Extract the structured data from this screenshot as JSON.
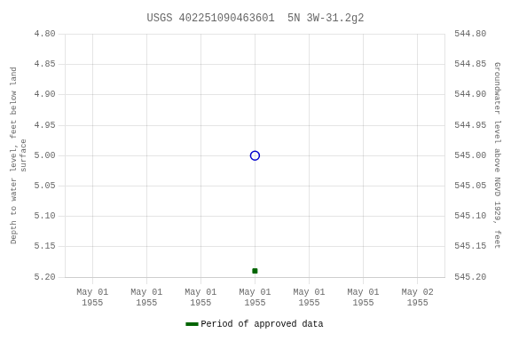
{
  "chart_data": {
    "type": "scatter",
    "title": "USGS 402251090463601  5N 3W-31.2g2",
    "categories": [
      "May 01\n1955",
      "May 01\n1955",
      "May 01\n1955",
      "May 01\n1955",
      "May 01\n1955",
      "May 01\n1955",
      "May 02\n1955"
    ],
    "series": [
      {
        "color": "#0000cc",
        "marker": "open_circle",
        "values": [
          null,
          null,
          null,
          5.0,
          null,
          null,
          null
        ]
      },
      {
        "name": "Period of approved data",
        "color": "#006400",
        "marker": "square",
        "values": [
          null,
          null,
          null,
          5.19,
          null,
          null,
          null
        ]
      }
    ],
    "ylabel": "Depth to water level, feet below land\nsurface",
    "y2label": "Groundwater level above NGVD 1929, feet",
    "ylim": [
      5.2,
      4.8
    ],
    "yticks": [
      {
        "value": 4.8,
        "label": "4.80"
      },
      4.85,
      {
        "value": 4.9,
        "label": "4.90"
      },
      4.95,
      {
        "value": 5.0,
        "label": "5.00"
      },
      5.05,
      {
        "value": 5.1,
        "label": "5.10"
      },
      5.15,
      {
        "value": 5.2,
        "label": "5.20"
      }
    ],
    "y2lim": [
      545.2,
      544.8
    ],
    "y2ticks": [
      {
        "value": 545.2,
        "label": "545.20"
      },
      545.15,
      {
        "value": 545.1,
        "label": "545.10"
      },
      545.05,
      {
        "value": 545.0,
        "label": "545.00"
      },
      544.95,
      {
        "value": 544.9,
        "label": "544.90"
      },
      544.85,
      {
        "value": 544.8,
        "label": "544.80"
      }
    ],
    "grid": true,
    "legend": "bottom"
  }
}
